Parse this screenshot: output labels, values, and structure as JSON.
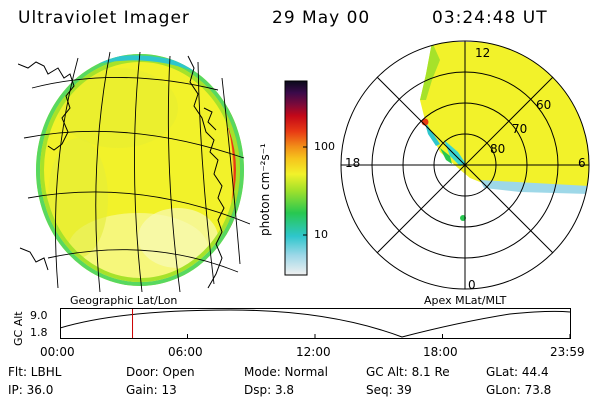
{
  "header": {
    "title": "Ultraviolet Imager",
    "date": "29 May 00",
    "time": "03:24:48 UT"
  },
  "geo_panel": {
    "label": "Geographic Lat/Lon"
  },
  "polar_panel": {
    "label": "Apex MLat/MLT",
    "mlt_labels": [
      "12",
      "18",
      "0",
      "6"
    ],
    "lat_labels": [
      "60",
      "70",
      "80"
    ]
  },
  "colorbar": {
    "unit_label": "photon cm⁻²s⁻¹",
    "ticks": [
      "100",
      "10"
    ],
    "scale": "log",
    "colors": [
      "#f0f0f0",
      "#9ed8e8",
      "#2ec6cc",
      "#28c850",
      "#a6e22a",
      "#f2f22a",
      "#f6c41c",
      "#f29018",
      "#e83a14",
      "#c40818",
      "#7a0a3a",
      "#3a0a4a",
      "#0a0a1a"
    ]
  },
  "altitude_plot": {
    "ylabel": "GC Alt",
    "yticks": [
      "9.0",
      "1.8"
    ],
    "xticks": [
      "00:00",
      "06:00",
      "12:00",
      "18:00",
      "23:59"
    ],
    "marker_time_hours": 3.413,
    "marker_color": "#cc0000"
  },
  "info": {
    "flt": "Flt: LBHL",
    "door": "Door: Open",
    "mode": "Mode: Normal",
    "gc_alt": "GC Alt: 8.1 Re",
    "glat": "GLat:   44.4",
    "ip": "IP: 36.0",
    "gain": "Gain: 13",
    "dsp": "Dsp:     3.8",
    "seq": "Seq: 39",
    "glon": "GLon:   73.8"
  }
}
